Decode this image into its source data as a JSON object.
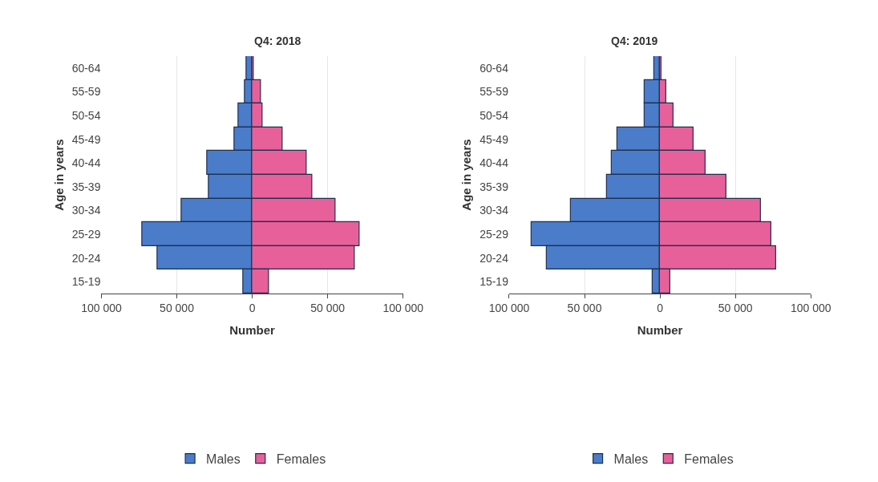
{
  "chart_data": [
    {
      "type": "bar",
      "orientation": "horizontal",
      "stacked": true,
      "title": "Q4: 2018",
      "xlabel": "Number",
      "ylabel": "Age in years",
      "categories": [
        "60-64",
        "55-59",
        "50-54",
        "45-49",
        "40-44",
        "35-39",
        "30-34",
        "25-29",
        "20-24",
        "15-19"
      ],
      "series": [
        {
          "name": "Males",
          "color": "#4a7cc9",
          "values": [
            -4000,
            -5000,
            -9000,
            -12000,
            -30000,
            -29000,
            -47000,
            -73000,
            -63000,
            -6000
          ]
        },
        {
          "name": "Females",
          "color": "#e8609a",
          "values": [
            1000,
            6000,
            7000,
            20000,
            36000,
            40000,
            55000,
            71000,
            68000,
            11000
          ]
        }
      ],
      "xlim": [
        -100000,
        100000
      ],
      "xticks": [
        {
          "value": -100000,
          "label": "100 000"
        },
        {
          "value": -50000,
          "label": "50 000"
        },
        0,
        {
          "value": 50000,
          "label": "50 000"
        },
        {
          "value": 100000,
          "label": "100 000"
        }
      ],
      "grid": "x",
      "legend": "bottom"
    },
    {
      "type": "bar",
      "orientation": "horizontal",
      "stacked": true,
      "title": "Q4: 2019",
      "xlabel": "Number",
      "ylabel": "Age in years",
      "categories": [
        "60-64",
        "55-59",
        "50-54",
        "45-49",
        "40-44",
        "35-39",
        "30-34",
        "25-29",
        "20-24",
        "15-19"
      ],
      "series": [
        {
          "name": "Males",
          "color": "#4a7cc9",
          "values": [
            -4000,
            -10000,
            -10000,
            -28000,
            -32000,
            -35000,
            -59000,
            -85000,
            -75000,
            -5000
          ]
        },
        {
          "name": "Females",
          "color": "#e8609a",
          "values": [
            1000,
            4000,
            9000,
            22000,
            30000,
            44000,
            67000,
            74000,
            77000,
            7000
          ]
        }
      ],
      "xlim": [
        -100000,
        100000
      ],
      "xticks": [
        {
          "value": -100000,
          "label": "100 000"
        },
        {
          "value": -50000,
          "label": "50 000"
        },
        0,
        {
          "value": 50000,
          "label": "50 000"
        },
        {
          "value": 100000,
          "label": "100 000"
        }
      ],
      "grid": "x",
      "legend": "bottom"
    }
  ]
}
